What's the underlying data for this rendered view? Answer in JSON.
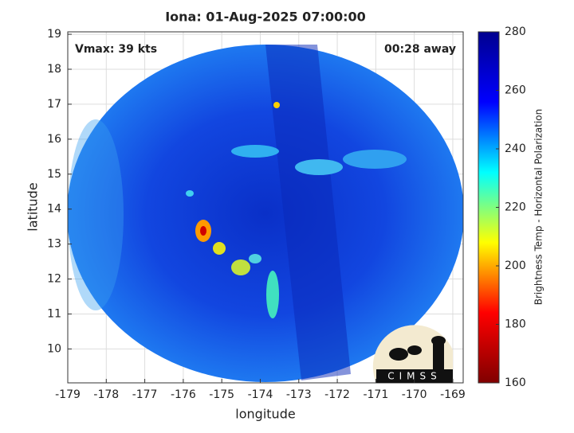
{
  "chart_data": {
    "type": "swath-map",
    "title": "Iona: 01-Aug-2025 07:00:00",
    "xlabel": "longitude",
    "ylabel": "latitude",
    "annotations": [
      "Vmax: 39 kts",
      "00:28 away"
    ],
    "logo_text": "CIMSS",
    "xlim": [
      -179.0,
      -168.73
    ],
    "xticks": [
      -179,
      -178,
      -177,
      -176,
      -175,
      -174,
      -173,
      -172,
      -171,
      -170,
      -169
    ],
    "ylim": [
      9.03,
      19.07
    ],
    "yticks": [
      10,
      11,
      12,
      13,
      14,
      15,
      16,
      17,
      18,
      19
    ],
    "grid": true,
    "colorbar": {
      "label": "Brightness Temp - Horizontal Polarization",
      "lim": [
        160,
        280
      ],
      "ticks": [
        160,
        180,
        200,
        220,
        240,
        260,
        280
      ],
      "colors": [
        "#800000",
        "#ff0000",
        "#ffff00",
        "#00ffff",
        "#0000ff",
        "#00008f"
      ]
    }
  }
}
